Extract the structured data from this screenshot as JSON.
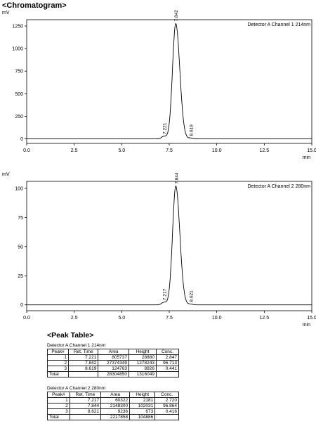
{
  "page_heading": "<Chromatogram>",
  "chart_data": [
    {
      "type": "line",
      "detector": "Detector A Channel 1 214nm",
      "ylabel": "mV",
      "xlabel": "min",
      "xlim": [
        0,
        15
      ],
      "ylim": [
        -50,
        1320
      ],
      "xticks": [
        "0.0",
        "2.5",
        "5.0",
        "7.5",
        "10.0",
        "12.5",
        "15.0"
      ],
      "xtick_values": [
        0,
        2.5,
        5,
        7.5,
        10,
        12.5,
        15
      ],
      "yticks": [
        "0",
        "250",
        "500",
        "750",
        "1000",
        "1250"
      ],
      "ytick_values": [
        0,
        250,
        500,
        750,
        1000,
        1250
      ],
      "baseline": 0,
      "peaks": [
        {
          "rt": 7.221,
          "label": "7.221",
          "height": 28.9,
          "width": 0.12
        },
        {
          "rt": 7.842,
          "label": "7.842",
          "height": 1278.2,
          "width": 0.17
        },
        {
          "rt": 8.619,
          "label": "8.619",
          "height": 8.9,
          "width": 0.1
        }
      ]
    },
    {
      "type": "line",
      "detector": "Detector A Channel 2 280nm",
      "ylabel": "mV",
      "xlabel": "min",
      "xlim": [
        0,
        15
      ],
      "ylim": [
        -5,
        106
      ],
      "xticks": [
        "0.0",
        "2.5",
        "5.0",
        "7.5",
        "10.0",
        "12.5",
        "15.0"
      ],
      "xtick_values": [
        0,
        2.5,
        5,
        7.5,
        10,
        12.5,
        15
      ],
      "yticks": [
        "0",
        "25",
        "50",
        "75",
        "100"
      ],
      "ytick_values": [
        0,
        25,
        50,
        75,
        100
      ],
      "baseline": 0,
      "peaks": [
        {
          "rt": 7.217,
          "label": "7.217",
          "height": 2.2,
          "width": 0.12
        },
        {
          "rt": 7.844,
          "label": "7.844",
          "height": 102.0,
          "width": 0.17
        },
        {
          "rt": 8.621,
          "label": "8.621",
          "height": 0.7,
          "width": 0.1
        }
      ]
    }
  ],
  "peak_table": {
    "heading": "<Peak Table>",
    "columns": [
      "Peak#",
      "Ret. Time",
      "Area",
      "Height",
      "Conc."
    ],
    "channels": [
      {
        "label": "Detector A Channel 1 214nm",
        "rows": [
          [
            "1",
            "7.221",
            "805737",
            "28880",
            "2.847"
          ],
          [
            "2",
            "7.842",
            "27374349",
            "1278243",
            "96.713"
          ],
          [
            "3",
            "8.619",
            "124763",
            "8926",
            "0.441"
          ]
        ],
        "total": [
          "Total",
          "",
          "28304850",
          "1316049",
          ""
        ]
      },
      {
        "label": "Detector A Channel 2 280nm",
        "rows": [
          [
            "1",
            "7.217",
            "60322",
            "2181",
            "2.720"
          ],
          [
            "2",
            "7.844",
            "2148300",
            "102031",
            "96.864"
          ],
          [
            "3",
            "8.621",
            "9236",
            "673",
            "0.416"
          ]
        ],
        "total": [
          "Total",
          "",
          "2217858",
          "104886",
          ""
        ]
      }
    ]
  }
}
